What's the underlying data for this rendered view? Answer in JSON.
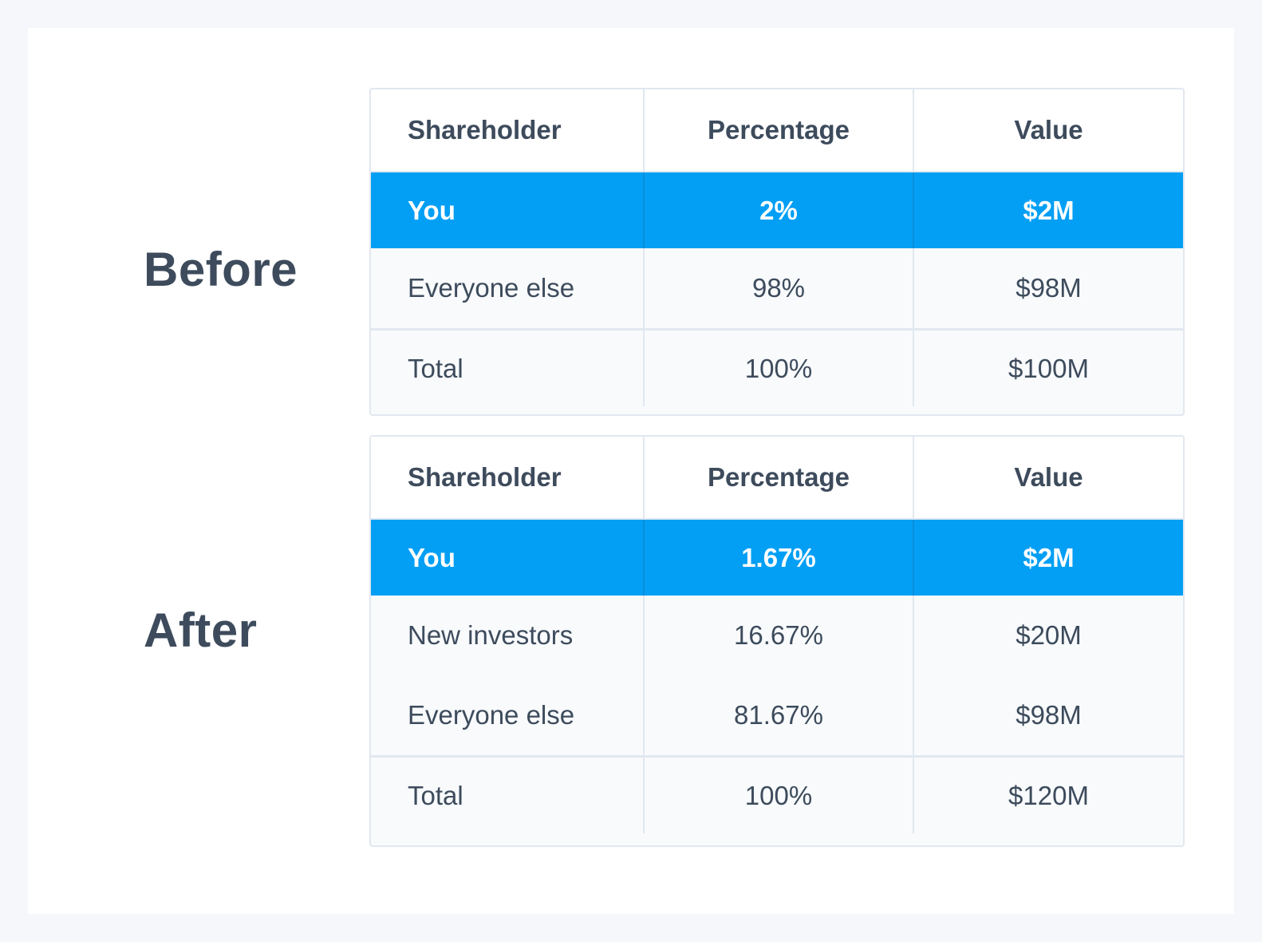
{
  "labels": {
    "before": "Before",
    "after": "After"
  },
  "headers": {
    "shareholder": "Shareholder",
    "percentage": "Percentage",
    "value": "Value"
  },
  "before": {
    "you": {
      "name": "You",
      "pct": "2%",
      "value": "$2M"
    },
    "rows": [
      {
        "name": "Everyone else",
        "pct": "98%",
        "value": "$98M"
      }
    ],
    "total": {
      "name": "Total",
      "pct": "100%",
      "value": "$100M"
    }
  },
  "after": {
    "you": {
      "name": "You",
      "pct": "1.67%",
      "value": "$2M"
    },
    "rows": [
      {
        "name": "New investors",
        "pct": "16.67%",
        "value": "$20M"
      },
      {
        "name": "Everyone else",
        "pct": "81.67%",
        "value": "$98M"
      }
    ],
    "total": {
      "name": "Total",
      "pct": "100%",
      "value": "$120M"
    }
  },
  "colors": {
    "highlight": "#039ff5",
    "text": "#3d4b5c",
    "border": "#e2e8f0"
  }
}
